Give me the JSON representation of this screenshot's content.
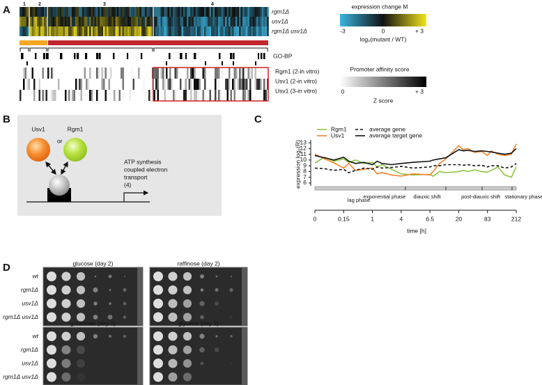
{
  "panel_a": {
    "panel_label": "A",
    "clusters": [
      "1",
      "2",
      "3",
      "4"
    ],
    "rows": [
      "rgm1Δ",
      "usv1Δ",
      "rgm1Δ usv1Δ"
    ],
    "expression_legend": {
      "title": "expression change M",
      "ticks": [
        "-3",
        "0",
        "+ 3"
      ],
      "axis_label": "log₂(mutant / WT)"
    },
    "go_label": "GO-BP",
    "affinity_rows": [
      "Rgm1 (2-in vitro)",
      "Usv1 (2-in vitro)",
      "Usv1 (3-in vitro)"
    ],
    "affinity_legend": {
      "title": "Promoter affinity score",
      "ticks": [
        "0",
        "+ 3"
      ],
      "axis_label": "Z score"
    }
  },
  "panel_b": {
    "panel_label": "B",
    "factors": [
      "Usv1",
      "Rgm1"
    ],
    "connector": "or",
    "gene_lines": [
      "ATP synthesis",
      "coupled electron",
      "transport",
      "(4)"
    ]
  },
  "chart_data": {
    "type": "line",
    "panel_label": "C",
    "x_label": "time [h]",
    "y_label": "expression log₂(R)",
    "x": [
      0,
      0.05,
      0.1,
      0.15,
      0.3,
      0.5,
      0.75,
      1,
      1.5,
      2,
      3,
      4,
      5,
      6.5,
      8,
      11,
      14,
      20,
      30,
      40,
      55,
      70,
      83,
      100,
      130,
      160,
      190,
      212
    ],
    "series": [
      {
        "name": "Rgm1",
        "color": "#8dc63f",
        "style": "solid",
        "values": [
          9.5,
          10.5,
          9.8,
          10.2,
          9.6,
          10,
          9.4,
          9.6,
          8.8,
          9.2,
          8.4,
          7.6,
          7.4,
          7.5,
          7.2,
          8,
          7.8,
          8,
          8.2,
          8,
          8.3,
          8,
          7.9,
          8.2,
          8.8,
          7.4,
          7,
          8.8
        ]
      },
      {
        "name": "Usv1",
        "color": "#f0822a",
        "style": "solid",
        "values": [
          11,
          10.2,
          9.5,
          8.6,
          9.4,
          8.2,
          8.4,
          8.6,
          7.6,
          7.8,
          7.4,
          7.2,
          7.6,
          7.4,
          8,
          9.4,
          10.2,
          12.5,
          11.8,
          12,
          11.3,
          11.5,
          10.8,
          11.6,
          11,
          10.8,
          11,
          12.8
        ]
      },
      {
        "name": "average gene",
        "color": "#111111",
        "style": "dashed",
        "values": [
          8.6,
          8.5,
          8.2,
          8.4,
          7.8,
          8.2,
          8.6,
          8.4,
          8.8,
          8.6,
          8.7,
          8.9,
          8.6,
          8.8,
          9,
          9,
          9.2,
          9.2,
          9.1,
          9.2,
          9,
          9.1,
          8.8,
          9,
          9,
          8.6,
          8.8,
          9.4
        ]
      },
      {
        "name": "average target gene",
        "color": "#111111",
        "style": "solid",
        "values": [
          10.8,
          10.4,
          10,
          10.5,
          9.8,
          9.4,
          9.6,
          9.2,
          9.8,
          9.4,
          9.2,
          9.4,
          9.6,
          9.8,
          10,
          10.2,
          10.4,
          11.8,
          11.6,
          11.7,
          11.5,
          11.6,
          11.5,
          11.4,
          11.2,
          11,
          11.2,
          12
        ]
      }
    ],
    "phases": [
      "lag phase",
      "exponential phase",
      "diauxic shift",
      "post-diauxic shift",
      "stationary phase"
    ],
    "xlim": [
      0,
      212
    ],
    "xticks": [
      0,
      0.15,
      1,
      4,
      6.5,
      20,
      83,
      212
    ],
    "ylim": [
      5.5,
      13.5
    ],
    "yticks": [
      6,
      7,
      8,
      9,
      10,
      11,
      12,
      13
    ]
  },
  "panel_d": {
    "panel_label": "D",
    "plates": [
      "glucose (day 2)",
      "raffinose (day 2)",
      "galactose (day 2)",
      "glycerol (day 3)"
    ],
    "top_rows": [
      "wt",
      "rgm1Δ",
      "usv1Δ",
      "rgm1Δ usv1Δ"
    ],
    "bottom_rows": [
      "wt",
      "rgm1Δ",
      "usv1Δ",
      "rgm1Δ usv1Δ"
    ]
  }
}
